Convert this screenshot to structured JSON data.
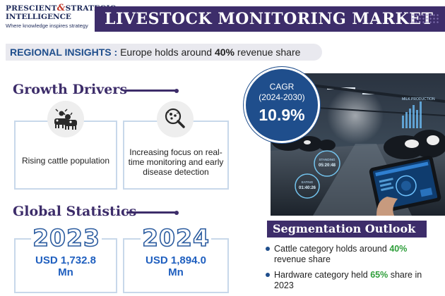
{
  "header": {
    "logo_line1": "PRESCIENT",
    "logo_amp": "&",
    "logo_line1b": "STRATEGIC",
    "logo_line2": "INTELLIGENCE",
    "logo_tagline": "Where knowledge inspires strategy",
    "title": "LIVESTOCK MONITORING MARKET"
  },
  "insight": {
    "label": "REGIONAL INSIGHTS :",
    "text_before": "Europe holds around",
    "highlight": "40%",
    "text_after": "revenue share"
  },
  "growth_drivers": {
    "heading": "Growth Drivers",
    "cards": [
      {
        "icon": "cattle-icon",
        "text": "Rising cattle population"
      },
      {
        "icon": "magnifier-monitoring-icon",
        "text": "Increasing focus on real-time monitoring and early disease detection"
      }
    ]
  },
  "global_statistics": {
    "heading": "Global Statistics",
    "stats": [
      {
        "year": "2023",
        "value_line1": "USD 1,732.8",
        "value_line2": "Mn"
      },
      {
        "year": "2024",
        "value_line1": "USD 1,894.0",
        "value_line2": "Mn"
      }
    ]
  },
  "cagr": {
    "label_line1": "CAGR",
    "label_line2": "(2024-2030)",
    "value": "10.9%"
  },
  "photo": {
    "overlay_label1": "MILK PRODUCTION",
    "overlay_label2": "STANDING",
    "overlay_time2": "05:20:48",
    "overlay_label3": "EATING",
    "overlay_time3": "01:40:26"
  },
  "segmentation": {
    "heading": "Segmentation Outlook",
    "items": [
      {
        "before": "Cattle category holds around",
        "highlight": "40%",
        "after": "revenue share"
      },
      {
        "before": "Hardware category held",
        "highlight": "65%",
        "after": "share in 2023"
      }
    ]
  },
  "colors": {
    "brand_purple": "#3d2d6a",
    "accent_blue": "#1f4e8c",
    "stat_blue": "#1f5fbf",
    "highlight_green": "#2e9e3a"
  }
}
